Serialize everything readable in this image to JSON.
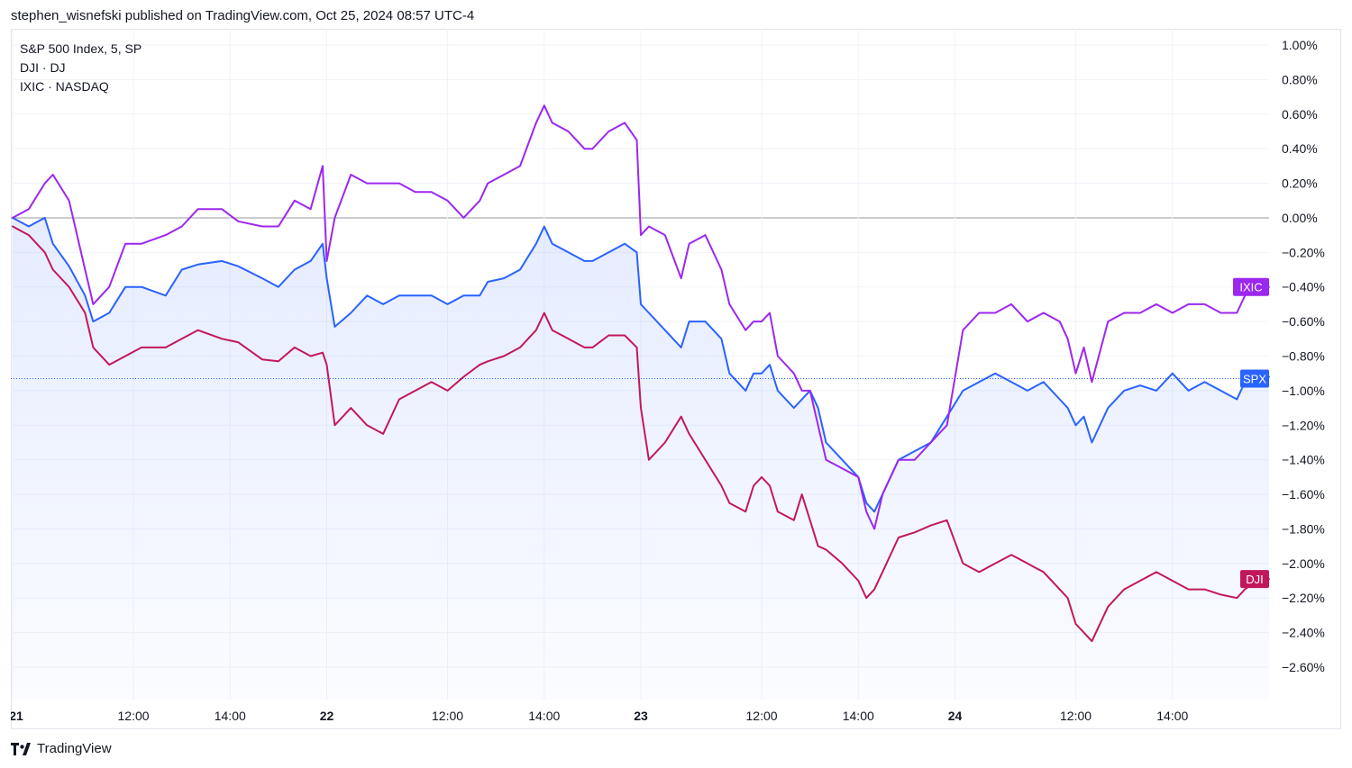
{
  "header": {
    "text": "stephen_wisnefski published on TradingView.com, Oct 25, 2024 08:57 UTC-4"
  },
  "footer": {
    "brand": "TradingView"
  },
  "legend": {
    "items": [
      "S&P 500 Index, 5, SP",
      "DJI · DJ",
      "IXIC · NASDAQ"
    ]
  },
  "colors": {
    "spx": "#2962ff",
    "dji": "#c2185b",
    "ixic": "#9c27ef",
    "grid": "#f0f3fa",
    "zero": "#9598a1"
  },
  "chart_data": {
    "type": "line",
    "title": "",
    "xlabel": "",
    "ylabel": "",
    "ylim": [
      -2.7,
      1.05
    ],
    "y_unit": "%",
    "y_ticks": [
      1.0,
      0.8,
      0.6,
      0.4,
      0.2,
      0.0,
      -0.2,
      -0.4,
      -0.6,
      -0.8,
      -1.0,
      -1.2,
      -1.4,
      -1.6,
      -1.8,
      -2.0,
      -2.2,
      -2.4,
      -2.6
    ],
    "y_tick_labels": [
      "1.00%",
      "0.80%",
      "0.60%",
      "0.40%",
      "0.20%",
      "0.00%",
      "−0.20%",
      "−0.40%",
      "−0.60%",
      "−0.80%",
      "−1.00%",
      "−1.20%",
      "−1.40%",
      "−1.60%",
      "−1.80%",
      "−2.00%",
      "−2.20%",
      "−2.40%",
      "−2.60%"
    ],
    "x_range": [
      0,
      312
    ],
    "x_ticks": [
      {
        "x": 0,
        "label": "21"
      },
      {
        "x": 30,
        "label": "12:00"
      },
      {
        "x": 54,
        "label": "14:00"
      },
      {
        "x": 78,
        "label": "22"
      },
      {
        "x": 108,
        "label": "12:00"
      },
      {
        "x": 132,
        "label": "14:00"
      },
      {
        "x": 156,
        "label": "23"
      },
      {
        "x": 186,
        "label": "12:00"
      },
      {
        "x": 210,
        "label": "14:00"
      },
      {
        "x": 234,
        "label": "24"
      },
      {
        "x": 264,
        "label": "12:00"
      },
      {
        "x": 288,
        "label": "14:00"
      }
    ],
    "series": [
      {
        "key": "spx",
        "tag": "SPX",
        "last": -0.93,
        "points": [
          [
            0,
            0.0
          ],
          [
            4,
            -0.05
          ],
          [
            8,
            0.0
          ],
          [
            10,
            -0.15
          ],
          [
            14,
            -0.28
          ],
          [
            18,
            -0.45
          ],
          [
            20,
            -0.6
          ],
          [
            24,
            -0.55
          ],
          [
            28,
            -0.4
          ],
          [
            32,
            -0.4
          ],
          [
            38,
            -0.45
          ],
          [
            42,
            -0.3
          ],
          [
            46,
            -0.27
          ],
          [
            52,
            -0.25
          ],
          [
            56,
            -0.28
          ],
          [
            62,
            -0.35
          ],
          [
            66,
            -0.4
          ],
          [
            70,
            -0.3
          ],
          [
            74,
            -0.25
          ],
          [
            77,
            -0.15
          ],
          [
            78,
            -0.35
          ],
          [
            80,
            -0.63
          ],
          [
            84,
            -0.55
          ],
          [
            88,
            -0.45
          ],
          [
            92,
            -0.5
          ],
          [
            96,
            -0.45
          ],
          [
            100,
            -0.45
          ],
          [
            104,
            -0.45
          ],
          [
            108,
            -0.5
          ],
          [
            112,
            -0.45
          ],
          [
            116,
            -0.45
          ],
          [
            118,
            -0.37
          ],
          [
            122,
            -0.35
          ],
          [
            126,
            -0.3
          ],
          [
            130,
            -0.15
          ],
          [
            132,
            -0.05
          ],
          [
            134,
            -0.15
          ],
          [
            138,
            -0.2
          ],
          [
            142,
            -0.25
          ],
          [
            144,
            -0.25
          ],
          [
            148,
            -0.2
          ],
          [
            152,
            -0.15
          ],
          [
            155,
            -0.2
          ],
          [
            156,
            -0.5
          ],
          [
            158,
            -0.55
          ],
          [
            162,
            -0.65
          ],
          [
            166,
            -0.75
          ],
          [
            168,
            -0.6
          ],
          [
            172,
            -0.6
          ],
          [
            176,
            -0.7
          ],
          [
            178,
            -0.9
          ],
          [
            182,
            -1.0
          ],
          [
            184,
            -0.9
          ],
          [
            186,
            -0.9
          ],
          [
            188,
            -0.85
          ],
          [
            190,
            -1.0
          ],
          [
            194,
            -1.1
          ],
          [
            196,
            -1.05
          ],
          [
            198,
            -1.0
          ],
          [
            200,
            -1.1
          ],
          [
            202,
            -1.3
          ],
          [
            206,
            -1.4
          ],
          [
            210,
            -1.5
          ],
          [
            212,
            -1.65
          ],
          [
            214,
            -1.7
          ],
          [
            216,
            -1.6
          ],
          [
            220,
            -1.4
          ],
          [
            224,
            -1.35
          ],
          [
            228,
            -1.3
          ],
          [
            232,
            -1.15
          ],
          [
            236,
            -1.0
          ],
          [
            240,
            -0.95
          ],
          [
            244,
            -0.9
          ],
          [
            248,
            -0.95
          ],
          [
            252,
            -1.0
          ],
          [
            256,
            -0.95
          ],
          [
            260,
            -1.05
          ],
          [
            262,
            -1.1
          ],
          [
            264,
            -1.2
          ],
          [
            266,
            -1.15
          ],
          [
            268,
            -1.3
          ],
          [
            272,
            -1.1
          ],
          [
            276,
            -1.0
          ],
          [
            280,
            -0.97
          ],
          [
            284,
            -1.0
          ],
          [
            288,
            -0.9
          ],
          [
            292,
            -1.0
          ],
          [
            296,
            -0.95
          ],
          [
            300,
            -1.0
          ],
          [
            304,
            -1.05
          ],
          [
            306,
            -0.95
          ],
          [
            310,
            -0.9
          ],
          [
            312,
            -0.92
          ]
        ]
      },
      {
        "key": "dji",
        "tag": "DJI",
        "last": -2.09,
        "points": [
          [
            0,
            -0.05
          ],
          [
            4,
            -0.1
          ],
          [
            8,
            -0.2
          ],
          [
            10,
            -0.3
          ],
          [
            14,
            -0.4
          ],
          [
            18,
            -0.55
          ],
          [
            20,
            -0.75
          ],
          [
            24,
            -0.85
          ],
          [
            28,
            -0.8
          ],
          [
            32,
            -0.75
          ],
          [
            38,
            -0.75
          ],
          [
            42,
            -0.7
          ],
          [
            46,
            -0.65
          ],
          [
            52,
            -0.7
          ],
          [
            56,
            -0.72
          ],
          [
            62,
            -0.82
          ],
          [
            66,
            -0.83
          ],
          [
            70,
            -0.75
          ],
          [
            74,
            -0.8
          ],
          [
            77,
            -0.78
          ],
          [
            78,
            -0.85
          ],
          [
            80,
            -1.2
          ],
          [
            84,
            -1.1
          ],
          [
            88,
            -1.2
          ],
          [
            92,
            -1.25
          ],
          [
            96,
            -1.05
          ],
          [
            100,
            -1.0
          ],
          [
            104,
            -0.95
          ],
          [
            108,
            -1.0
          ],
          [
            112,
            -0.92
          ],
          [
            116,
            -0.85
          ],
          [
            118,
            -0.83
          ],
          [
            122,
            -0.8
          ],
          [
            126,
            -0.75
          ],
          [
            130,
            -0.65
          ],
          [
            132,
            -0.55
          ],
          [
            134,
            -0.65
          ],
          [
            138,
            -0.7
          ],
          [
            142,
            -0.75
          ],
          [
            144,
            -0.75
          ],
          [
            148,
            -0.68
          ],
          [
            152,
            -0.68
          ],
          [
            155,
            -0.75
          ],
          [
            156,
            -1.1
          ],
          [
            158,
            -1.4
          ],
          [
            162,
            -1.3
          ],
          [
            166,
            -1.15
          ],
          [
            168,
            -1.25
          ],
          [
            172,
            -1.4
          ],
          [
            176,
            -1.55
          ],
          [
            178,
            -1.65
          ],
          [
            182,
            -1.7
          ],
          [
            184,
            -1.55
          ],
          [
            186,
            -1.5
          ],
          [
            188,
            -1.55
          ],
          [
            190,
            -1.7
          ],
          [
            194,
            -1.75
          ],
          [
            196,
            -1.6
          ],
          [
            198,
            -1.75
          ],
          [
            200,
            -1.9
          ],
          [
            202,
            -1.92
          ],
          [
            206,
            -2.0
          ],
          [
            210,
            -2.1
          ],
          [
            212,
            -2.2
          ],
          [
            214,
            -2.15
          ],
          [
            216,
            -2.05
          ],
          [
            220,
            -1.85
          ],
          [
            224,
            -1.82
          ],
          [
            228,
            -1.78
          ],
          [
            232,
            -1.75
          ],
          [
            236,
            -2.0
          ],
          [
            240,
            -2.05
          ],
          [
            244,
            -2.0
          ],
          [
            248,
            -1.95
          ],
          [
            252,
            -2.0
          ],
          [
            256,
            -2.05
          ],
          [
            260,
            -2.15
          ],
          [
            262,
            -2.2
          ],
          [
            264,
            -2.35
          ],
          [
            266,
            -2.4
          ],
          [
            268,
            -2.45
          ],
          [
            272,
            -2.25
          ],
          [
            276,
            -2.15
          ],
          [
            280,
            -2.1
          ],
          [
            284,
            -2.05
          ],
          [
            288,
            -2.1
          ],
          [
            292,
            -2.15
          ],
          [
            296,
            -2.15
          ],
          [
            300,
            -2.18
          ],
          [
            304,
            -2.2
          ],
          [
            306,
            -2.15
          ],
          [
            310,
            -2.08
          ],
          [
            312,
            -2.09
          ]
        ]
      },
      {
        "key": "ixic",
        "tag": "IXIC",
        "last": -0.4,
        "points": [
          [
            0,
            0.0
          ],
          [
            4,
            0.05
          ],
          [
            8,
            0.2
          ],
          [
            10,
            0.25
          ],
          [
            14,
            0.1
          ],
          [
            18,
            -0.3
          ],
          [
            20,
            -0.5
          ],
          [
            24,
            -0.4
          ],
          [
            28,
            -0.15
          ],
          [
            32,
            -0.15
          ],
          [
            38,
            -0.1
          ],
          [
            42,
            -0.05
          ],
          [
            46,
            0.05
          ],
          [
            52,
            0.05
          ],
          [
            56,
            -0.02
          ],
          [
            62,
            -0.05
          ],
          [
            66,
            -0.05
          ],
          [
            70,
            0.1
          ],
          [
            74,
            0.05
          ],
          [
            77,
            0.3
          ],
          [
            78,
            -0.25
          ],
          [
            80,
            0.0
          ],
          [
            84,
            0.25
          ],
          [
            88,
            0.2
          ],
          [
            92,
            0.2
          ],
          [
            96,
            0.2
          ],
          [
            100,
            0.15
          ],
          [
            104,
            0.15
          ],
          [
            108,
            0.1
          ],
          [
            112,
            0.0
          ],
          [
            116,
            0.1
          ],
          [
            118,
            0.2
          ],
          [
            122,
            0.25
          ],
          [
            126,
            0.3
          ],
          [
            130,
            0.55
          ],
          [
            132,
            0.65
          ],
          [
            134,
            0.55
          ],
          [
            138,
            0.5
          ],
          [
            142,
            0.4
          ],
          [
            144,
            0.4
          ],
          [
            148,
            0.5
          ],
          [
            152,
            0.55
          ],
          [
            155,
            0.45
          ],
          [
            156,
            -0.1
          ],
          [
            158,
            -0.05
          ],
          [
            162,
            -0.1
          ],
          [
            166,
            -0.35
          ],
          [
            168,
            -0.15
          ],
          [
            172,
            -0.1
          ],
          [
            176,
            -0.3
          ],
          [
            178,
            -0.5
          ],
          [
            182,
            -0.65
          ],
          [
            184,
            -0.6
          ],
          [
            186,
            -0.6
          ],
          [
            188,
            -0.55
          ],
          [
            190,
            -0.8
          ],
          [
            194,
            -0.9
          ],
          [
            196,
            -1.0
          ],
          [
            198,
            -1.0
          ],
          [
            200,
            -1.2
          ],
          [
            202,
            -1.4
          ],
          [
            206,
            -1.45
          ],
          [
            210,
            -1.5
          ],
          [
            212,
            -1.7
          ],
          [
            214,
            -1.8
          ],
          [
            216,
            -1.6
          ],
          [
            220,
            -1.4
          ],
          [
            224,
            -1.4
          ],
          [
            228,
            -1.3
          ],
          [
            232,
            -1.2
          ],
          [
            236,
            -0.65
          ],
          [
            240,
            -0.55
          ],
          [
            244,
            -0.55
          ],
          [
            248,
            -0.5
          ],
          [
            252,
            -0.6
          ],
          [
            256,
            -0.55
          ],
          [
            260,
            -0.6
          ],
          [
            262,
            -0.7
          ],
          [
            264,
            -0.9
          ],
          [
            266,
            -0.75
          ],
          [
            268,
            -0.95
          ],
          [
            272,
            -0.6
          ],
          [
            276,
            -0.55
          ],
          [
            280,
            -0.55
          ],
          [
            284,
            -0.5
          ],
          [
            288,
            -0.55
          ],
          [
            292,
            -0.5
          ],
          [
            296,
            -0.5
          ],
          [
            300,
            -0.55
          ],
          [
            304,
            -0.55
          ],
          [
            306,
            -0.45
          ],
          [
            310,
            -0.4
          ],
          [
            312,
            -0.4
          ]
        ]
      }
    ]
  }
}
